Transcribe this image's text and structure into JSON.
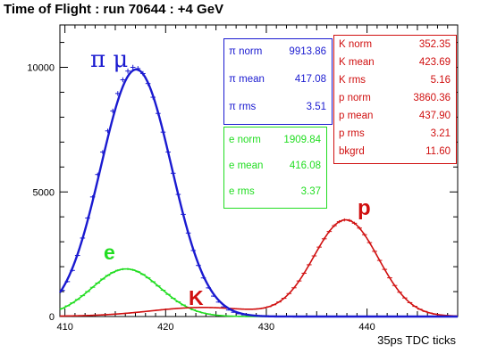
{
  "title": "Time of Flight : run 70644 : +4 GeV",
  "colors": {
    "pi": "#1a1ad0",
    "e": "#22dd22",
    "k": "#d01010",
    "p": "#d01010",
    "axis": "#000000"
  },
  "chart_data": {
    "type": "line",
    "title": "Time of Flight : run 70644 : +4 GeV",
    "xlabel": "35ps TDC ticks",
    "ylabel": "",
    "xlim": [
      409.5,
      449
    ],
    "ylim": [
      0,
      11700
    ],
    "x_ticks": [
      "410",
      "420",
      "430",
      "440"
    ],
    "y_ticks": [
      "0",
      "5000",
      "10000"
    ],
    "bin_width": 0.5,
    "bins_x": [
      409.75,
      410.25,
      410.75,
      411.25,
      411.75,
      412.25,
      412.75,
      413.25,
      413.75,
      414.25,
      414.75,
      415.25,
      415.75,
      416.25,
      416.75,
      417.25,
      417.75,
      418.25,
      418.75,
      419.25,
      419.75,
      420.25,
      420.75,
      421.25,
      421.75,
      422.25,
      422.75,
      423.25,
      423.75,
      424.25,
      424.75,
      425.25,
      425.75,
      426.25,
      426.75,
      427.25,
      427.75,
      428.25,
      428.75,
      429.25,
      429.75,
      430.25,
      430.75,
      431.25,
      431.75,
      432.25,
      432.75,
      433.25,
      433.75,
      434.25,
      434.75,
      435.25,
      435.75,
      436.25,
      436.75,
      437.25,
      437.75,
      438.25,
      438.75,
      439.25,
      439.75,
      440.25,
      440.75,
      441.25,
      441.75,
      442.25,
      442.75,
      443.25,
      443.75,
      444.25,
      444.75,
      445.25,
      445.75,
      446.25,
      446.75,
      447.25,
      447.75,
      448.25,
      448.75
    ],
    "pi_points": [
      1050,
      1400,
      1850,
      2450,
      3150,
      3950,
      4800,
      5700,
      6600,
      7450,
      8250,
      8950,
      9500,
      9850,
      10000,
      9950,
      9750,
      9350,
      8800,
      8150,
      7400,
      6600,
      5750,
      4900,
      4100,
      3350,
      2650,
      2050,
      1550,
      1150,
      820,
      580,
      390,
      260,
      170,
      110,
      65,
      40,
      25,
      15,
      10,
      5,
      3,
      2,
      1,
      1,
      0,
      0,
      0,
      0,
      0,
      0,
      0,
      0,
      0,
      0,
      0,
      0,
      0,
      0,
      0,
      0,
      0,
      0,
      0,
      0,
      0,
      0,
      0,
      0,
      0,
      0,
      0,
      0,
      0,
      0,
      0,
      0,
      0
    ],
    "series": [
      {
        "name": "π μ",
        "color": "#1a1ad0",
        "stats": {
          "norm": "9913.86",
          "mean": "417.08",
          "rms": "3.51"
        },
        "gauss": {
          "norm": 9913.86,
          "mean": 417.08,
          "rms": 3.51
        }
      },
      {
        "name": "e",
        "color": "#22dd22",
        "stats": {
          "norm": "1909.84",
          "mean": "416.08",
          "rms": "3.37"
        },
        "gauss": {
          "norm": 1909.84,
          "mean": 416.08,
          "rms": 3.37
        }
      },
      {
        "name": "K",
        "color": "#d01010",
        "stats": {
          "norm": "352.35",
          "mean": "423.69",
          "rms": "5.16"
        },
        "gauss": {
          "norm": 352.35,
          "mean": 423.69,
          "rms": 5.16
        }
      },
      {
        "name": "p",
        "color": "#d01010",
        "stats": {
          "norm": "3860.36",
          "mean": "437.90",
          "rms": "3.21"
        },
        "gauss": {
          "norm": 3860.36,
          "mean": 437.9,
          "rms": 3.21
        }
      }
    ],
    "bkgrd": "11.60"
  },
  "stat_boxes": {
    "pi": [
      {
        "label": "π norm",
        "value": "9913.86"
      },
      {
        "label": "π mean",
        "value": "417.08"
      },
      {
        "label": "π rms",
        "value": "3.51"
      }
    ],
    "e": [
      {
        "label": "e norm",
        "value": "1909.84"
      },
      {
        "label": "e mean",
        "value": "416.08"
      },
      {
        "label": "e rms",
        "value": "3.37"
      }
    ],
    "kp": [
      {
        "label": "K norm",
        "value": "352.35"
      },
      {
        "label": "K mean",
        "value": "423.69"
      },
      {
        "label": "K rms",
        "value": "5.16"
      },
      {
        "label": "p norm",
        "value": "3860.36"
      },
      {
        "label": "p mean",
        "value": "437.90"
      },
      {
        "label": "p rms",
        "value": "3.21"
      },
      {
        "label": "bkgrd",
        "value": "11.60"
      }
    ]
  },
  "annotations": {
    "pi": "π μ",
    "e": "e",
    "k": "K",
    "p": "p"
  }
}
